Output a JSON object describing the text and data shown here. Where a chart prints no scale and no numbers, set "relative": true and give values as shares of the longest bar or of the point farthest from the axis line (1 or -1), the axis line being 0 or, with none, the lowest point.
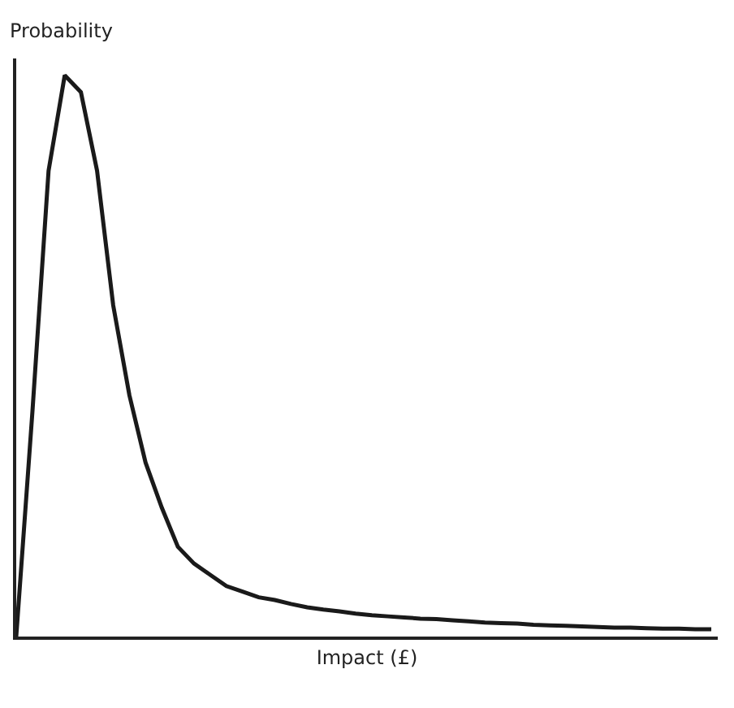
{
  "chart_data": {
    "type": "line",
    "xlabel": "Impact (£)",
    "ylabel": "Probability",
    "relative": true,
    "grid": false,
    "legend": false,
    "marker": "none",
    "line_style": "solid",
    "categories": [
      null,
      null,
      null,
      null,
      null,
      null,
      null,
      null,
      null,
      null,
      null,
      null,
      null,
      null,
      null,
      null,
      null,
      null,
      null,
      null,
      null,
      null,
      null,
      null,
      null,
      null,
      null,
      null,
      null,
      null,
      null,
      null,
      null,
      null,
      null,
      null,
      null,
      null,
      null,
      null,
      null,
      null,
      null,
      null
    ],
    "series": [
      {
        "color": "#1a1a1a",
        "values": [
          0,
          0.4,
          0.83,
          1.0,
          0.97,
          0.83,
          0.59,
          0.43,
          0.31,
          0.23,
          0.16,
          0.13,
          0.11,
          0.09,
          0.08,
          0.07,
          0.065,
          0.058,
          0.052,
          0.048,
          0.045,
          0.041,
          0.038,
          0.036,
          0.034,
          0.032,
          0.031,
          0.029,
          0.027,
          0.025,
          0.024,
          0.023,
          0.021,
          0.02,
          0.019,
          0.018,
          0.017,
          0.016,
          0.016,
          0.015,
          0.014,
          0.014,
          0.013,
          0.013
        ]
      }
    ]
  }
}
